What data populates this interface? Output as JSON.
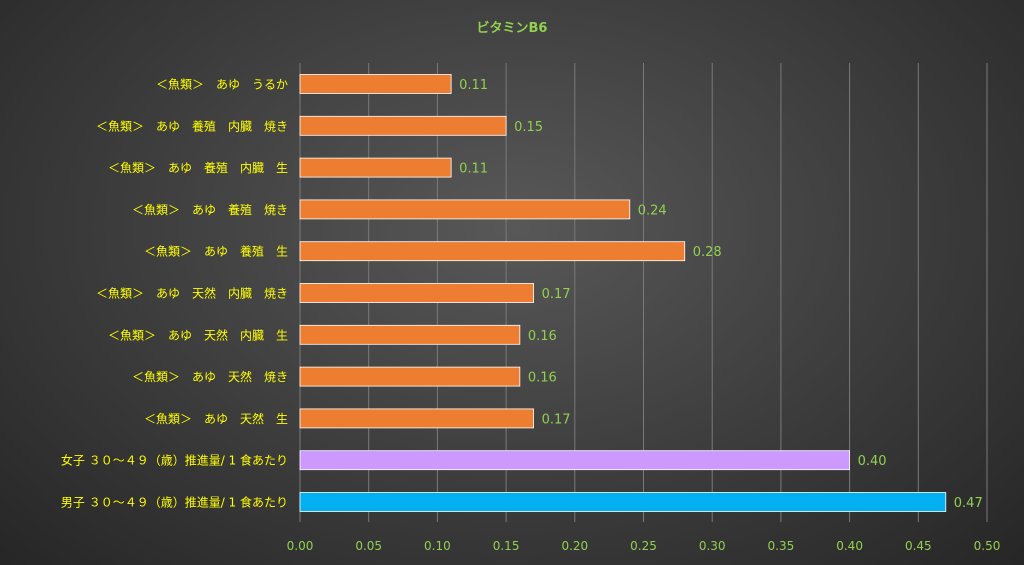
{
  "chart_data": {
    "type": "bar",
    "orientation": "horizontal",
    "title": "ビタミンB6",
    "xlabel": "",
    "ylabel": "",
    "xlim": [
      0,
      0.5
    ],
    "x_ticks": [
      "0.00",
      "0.05",
      "0.10",
      "0.15",
      "0.20",
      "0.25",
      "0.30",
      "0.35",
      "0.40",
      "0.45",
      "0.50"
    ],
    "grid": "vertical",
    "categories": [
      "＜魚類＞　あゆ　うるか",
      "＜魚類＞　あゆ　養殖　内臓　焼き",
      "＜魚類＞　あゆ　養殖　内臓　生",
      "＜魚類＞　あゆ　養殖　焼き",
      "＜魚類＞　あゆ　養殖　生",
      "＜魚類＞　あゆ　天然　内臓　焼き",
      "＜魚類＞　あゆ　天然　内臓　生",
      "＜魚類＞　あゆ　天然　焼き",
      "＜魚類＞　あゆ　天然　生",
      "女子 ３０～４９（歳）推進量/ 1 食あたり",
      "男子 ３０～４９（歳）推進量/ 1 食あたり"
    ],
    "values": [
      0.11,
      0.15,
      0.11,
      0.24,
      0.28,
      0.17,
      0.16,
      0.16,
      0.17,
      0.4,
      0.47
    ],
    "value_labels": [
      "0.11",
      "0.15",
      "0.11",
      "0.24",
      "0.28",
      "0.17",
      "0.16",
      "0.16",
      "0.17",
      "0.40",
      "0.47"
    ],
    "colors": [
      "#ED7D31",
      "#ED7D31",
      "#ED7D31",
      "#ED7D31",
      "#ED7D31",
      "#ED7D31",
      "#ED7D31",
      "#ED7D31",
      "#ED7D31",
      "#CC99FF",
      "#00B0F0"
    ],
    "text_colors": {
      "title": "#92D050",
      "category_labels": "#FFFF00",
      "tick_labels": "#92D050",
      "value_labels": "#92D050"
    }
  }
}
